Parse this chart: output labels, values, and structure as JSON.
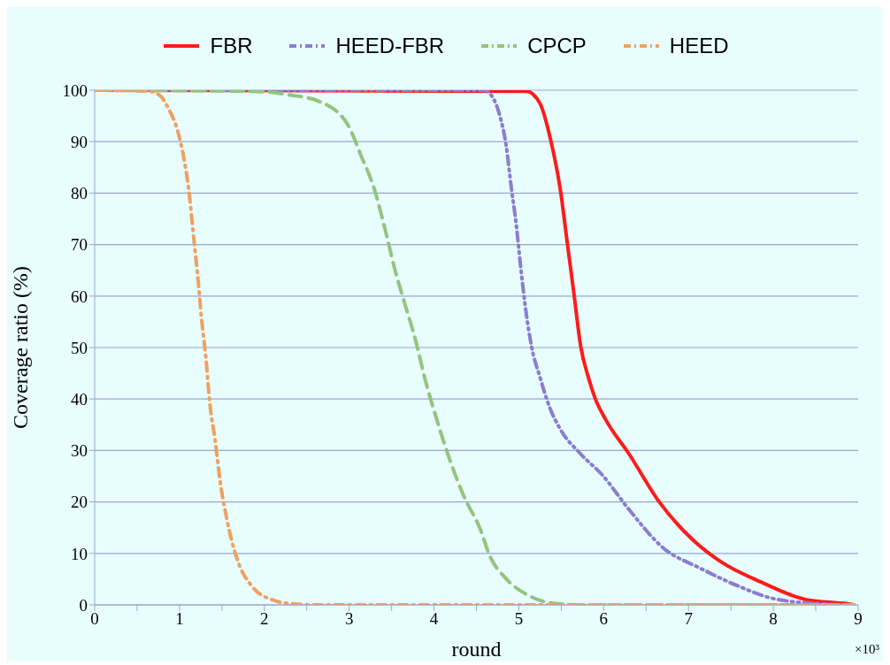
{
  "chart_data": {
    "type": "line",
    "xlabel": "round",
    "ylabel": "Coverage ratio (%)",
    "annotations": [
      "×10³"
    ],
    "xlim": [
      0,
      9
    ],
    "xticks": [
      0,
      {
        "value": 0.5,
        "label": null
      },
      1,
      {
        "value": 1.5,
        "label": null
      },
      2,
      {
        "value": 2.5,
        "label": null
      },
      3,
      {
        "value": 3.5,
        "label": null
      },
      4,
      {
        "value": 4.5,
        "label": null
      },
      5,
      {
        "value": 5.5,
        "label": null
      },
      6,
      {
        "value": 6.5,
        "label": null
      },
      7,
      {
        "value": 7.5,
        "label": null
      },
      8,
      {
        "value": 8.5,
        "label": null
      },
      9
    ],
    "ylim": [
      0,
      100
    ],
    "yticks": [
      0,
      10,
      20,
      30,
      40,
      50,
      60,
      70,
      80,
      90,
      100
    ],
    "grid": "y",
    "legend": "top",
    "marker": "none",
    "series": [
      {
        "name": "FBR",
        "color": "#ff1a1a",
        "line_style": "solid",
        "x": [
          0,
          5.09,
          5.25,
          5.37,
          5.49,
          5.57,
          5.65,
          5.73,
          5.82,
          5.9,
          6.02,
          6.3,
          6.66,
          7.06,
          7.38,
          7.86,
          8.39,
          8.87,
          8.95
        ],
        "values": [
          100,
          99.8,
          97.4,
          90.7,
          80.6,
          70.5,
          60.4,
          50.2,
          44.2,
          40.1,
          36.1,
          29.3,
          19.9,
          12.5,
          8.4,
          4.4,
          1,
          0.2,
          0
        ]
      },
      {
        "name": "HEED-FBR",
        "color": "#8a7dd0",
        "line_style": "dashdotdot",
        "x": [
          0,
          4.6,
          4.65,
          4.77,
          4.85,
          4.91,
          4.97,
          5.03,
          5.09,
          5.15,
          5.25,
          5.37,
          5.49,
          5.73,
          5.98,
          6.3,
          6.7,
          7.14,
          7.58,
          7.98,
          8.47,
          8.87,
          8.95
        ],
        "values": [
          100,
          100,
          99.5,
          95.4,
          89.3,
          81.3,
          73.8,
          64.4,
          56.3,
          50.2,
          44.2,
          38.1,
          34.1,
          29.3,
          25.3,
          18.5,
          11.1,
          7.1,
          3.7,
          1.3,
          0.3,
          0,
          0
        ]
      },
      {
        "name": "CPCP",
        "color": "#93c47d",
        "line_style": "dashed",
        "x": [
          0,
          1.85,
          2.29,
          2.65,
          2.98,
          3.14,
          3.3,
          3.42,
          3.54,
          3.66,
          3.78,
          3.9,
          4.02,
          4.19,
          4.35,
          4.55,
          4.65,
          4.85,
          5.13,
          5.41,
          5.7,
          8.95
        ],
        "values": [
          100,
          99.8,
          99.1,
          97.8,
          93.4,
          87.3,
          80.6,
          73.2,
          65.1,
          58.3,
          51.6,
          43.5,
          36.7,
          28,
          21.2,
          14.5,
          9.8,
          5.1,
          1.7,
          0.3,
          0,
          0
        ]
      },
      {
        "name": "HEED",
        "color": "#f0a060",
        "line_style": "dashdot",
        "x": [
          0,
          0.64,
          0.78,
          0.88,
          0.96,
          1.06,
          1.11,
          1.16,
          1.22,
          1.26,
          1.31,
          1.36,
          1.42,
          1.48,
          1.56,
          1.69,
          1.85,
          2.09,
          2.33,
          2.6,
          8.95
        ],
        "values": [
          100,
          99.8,
          98.8,
          96.1,
          93.1,
          86,
          80.6,
          72.5,
          63,
          55.6,
          48.2,
          38.8,
          32,
          23.9,
          16.5,
          8.4,
          3.7,
          1,
          0.2,
          0,
          0
        ]
      }
    ]
  }
}
